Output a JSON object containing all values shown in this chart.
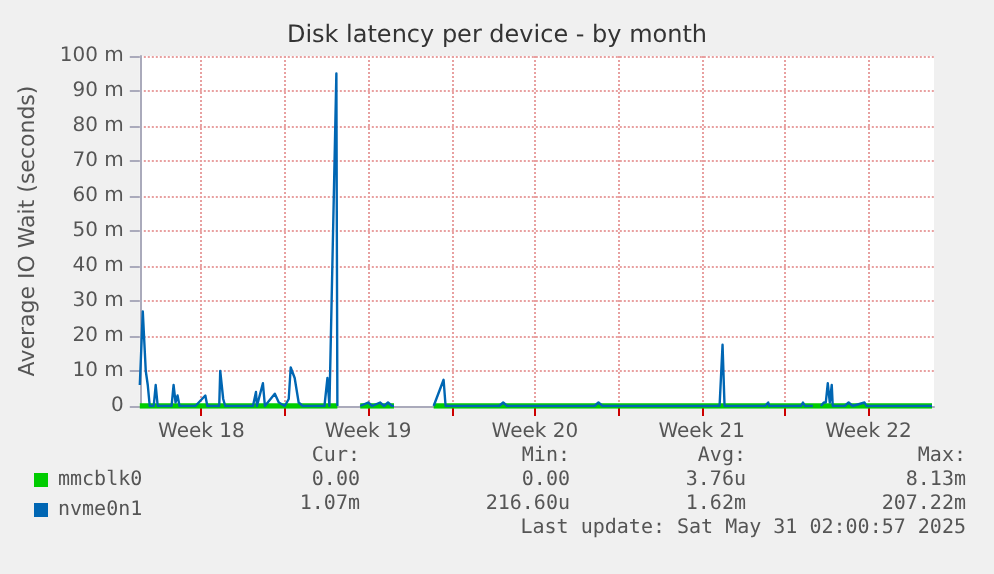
{
  "chart_data": {
    "type": "line",
    "title": "Disk latency per device - by month",
    "ylabel": "Average IO Wait (seconds)",
    "xlim": [
      "2025-04-28T22:00",
      "2025-06-01T06:00"
    ],
    "xticks": [
      {
        "value": "2025-05-01T12:00",
        "label": "Week 18"
      },
      {
        "value": "2025-05-05T00:00",
        "label": null
      },
      {
        "value": "2025-05-08T12:00",
        "label": "Week 19"
      },
      {
        "value": "2025-05-12T00:00",
        "label": null
      },
      {
        "value": "2025-05-15T12:00",
        "label": "Week 20"
      },
      {
        "value": "2025-05-19T00:00",
        "label": null
      },
      {
        "value": "2025-05-22T12:00",
        "label": "Week 21"
      },
      {
        "value": "2025-05-26T00:00",
        "label": null
      },
      {
        "value": "2025-05-29T12:00",
        "label": "Week 22"
      }
    ],
    "ylim": [
      0,
      100
    ],
    "yticks": [
      0,
      {
        "value": 10,
        "label": "10 m"
      },
      {
        "value": 20,
        "label": "20 m"
      },
      {
        "value": 30,
        "label": "30 m"
      },
      {
        "value": 40,
        "label": "40 m"
      },
      {
        "value": 50,
        "label": "50 m"
      },
      {
        "value": 60,
        "label": "60 m"
      },
      {
        "value": 70,
        "label": "70 m"
      },
      {
        "value": 80,
        "label": "80 m"
      },
      {
        "value": 90,
        "label": "90 m"
      },
      {
        "value": 100,
        "label": "100 m"
      }
    ],
    "grid": true,
    "legend": "bottom left",
    "marker": "none",
    "line_style": "solid",
    "series": [
      {
        "name": "mmcblk0",
        "color": "#00cc00",
        "x": [
          "2025-04-28T22:00",
          "2025-05-07T05:00",
          "2025-05-07T07:00",
          "2025-05-08T04:00",
          "2025-05-09T14:00",
          "2025-05-09T16:00",
          "2025-05-11T06:00",
          "2025-06-01T04:00"
        ],
        "values": [
          0,
          0,
          null,
          0,
          0,
          null,
          0,
          0
        ]
      },
      {
        "name": "nvme0n1",
        "color": "#0066b3",
        "x": [
          "2025-04-28T22:00",
          "2025-04-29T01:00",
          "2025-04-29T04:00",
          "2025-04-29T06:00",
          "2025-04-29T08:00",
          "2025-04-29T12:00",
          "2025-04-29T14:00",
          "2025-04-29T16:00",
          "2025-04-30T06:00",
          "2025-04-30T08:00",
          "2025-04-30T10:00",
          "2025-04-30T12:00",
          "2025-04-30T14:00",
          "2025-05-01T06:00",
          "2025-05-01T16:00",
          "2025-05-01T18:00",
          "2025-05-02T06:00",
          "2025-05-02T07:00",
          "2025-05-02T10:00",
          "2025-05-02T12:00",
          "2025-05-03T16:00",
          "2025-05-03T19:00",
          "2025-05-03T20:00",
          "2025-05-04T02:00",
          "2025-05-04T04:00",
          "2025-05-04T14:00",
          "2025-05-04T18:00",
          "2025-05-05T00:00",
          "2025-05-05T04:00",
          "2025-05-05T06:00",
          "2025-05-05T10:00",
          "2025-05-05T14:00",
          "2025-05-05T18:00",
          "2025-05-06T16:00",
          "2025-05-06T19:00",
          "2025-05-06T21:00",
          "2025-05-07T04:00",
          "2025-05-07T05:00",
          "2025-05-07T07:00",
          "2025-05-08T04:00",
          "2025-05-08T12:00",
          "2025-05-08T16:00",
          "2025-05-09T00:00",
          "2025-05-09T04:00",
          "2025-05-09T08:00",
          "2025-05-09T12:00",
          "2025-05-09T14:00",
          "2025-05-09T16:00",
          "2025-05-11T06:00",
          "2025-05-11T16:00",
          "2025-05-11T18:00",
          "2025-05-14T00:00",
          "2025-05-14T04:00",
          "2025-05-14T08:00",
          "2025-05-16T08:00",
          "2025-05-18T00:00",
          "2025-05-18T04:00",
          "2025-05-18T08:00",
          "2025-05-23T06:00",
          "2025-05-23T09:00",
          "2025-05-23T11:00",
          "2025-05-25T04:00",
          "2025-05-25T07:00",
          "2025-05-25T08:00",
          "2025-05-26T16:00",
          "2025-05-26T18:00",
          "2025-05-26T20:00",
          "2025-05-27T04:00",
          "2025-05-27T06:00",
          "2025-05-27T12:00",
          "2025-05-27T15:00",
          "2025-05-27T17:00",
          "2025-05-27T19:00",
          "2025-05-27T21:00",
          "2025-05-27T23:00",
          "2025-05-28T00:00",
          "2025-05-28T12:00",
          "2025-05-28T16:00",
          "2025-05-28T20:00",
          "2025-05-29T08:00",
          "2025-05-29T10:00",
          "2025-06-01T04:00"
        ],
        "values": [
          6,
          27,
          10,
          6,
          0,
          0,
          6,
          0,
          0,
          6,
          1,
          3,
          0,
          0,
          3,
          0,
          0,
          10,
          2,
          0,
          0,
          4,
          0,
          6.5,
          0,
          3.5,
          1,
          0,
          2,
          11,
          8,
          1,
          0,
          0,
          8,
          0,
          95,
          0,
          null,
          0,
          1,
          0,
          1,
          0,
          1,
          0,
          0,
          null,
          0,
          7.5,
          0,
          0,
          1,
          0,
          0,
          0,
          1,
          0,
          0,
          17.5,
          0,
          0,
          1,
          0,
          0,
          1,
          0,
          0,
          null,
          0,
          1,
          1,
          6.5,
          1,
          6,
          0,
          0,
          1,
          0,
          1,
          0,
          0
        ]
      }
    ],
    "annotations": [
      "Cur:",
      "Min:",
      "Avg:",
      "Max:",
      "0.00",
      "0.00",
      "3.76u",
      "8.13m",
      "1.07m",
      "216.60u",
      "1.62m",
      "207.22m",
      "Last update: Sat May 31 02:00:57 2025"
    ]
  }
}
